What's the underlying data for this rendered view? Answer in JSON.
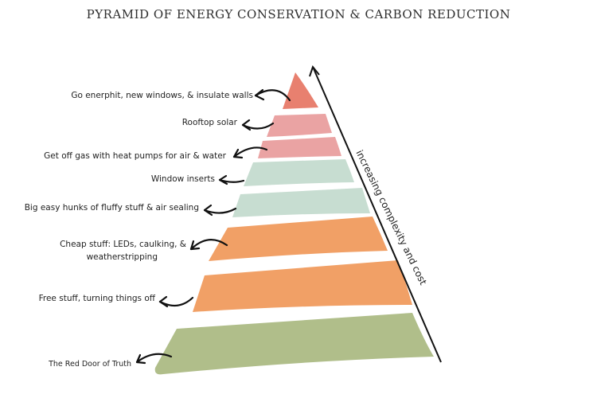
{
  "title": "PYRAMID OF ENERGY CONSERVATION & CARBON REDUCTION",
  "axis_label": "increasing complexity and cost",
  "colors": {
    "coral": "#e8806f",
    "pink": "#eaa3a3",
    "mint": "#c7ddd1",
    "orange": "#f1a066",
    "olive": "#b0be8a",
    "ink": "#111111"
  },
  "levels": [
    {
      "label": "Go enerphit, new windows, & insulate walls",
      "color": "#e8806f"
    },
    {
      "label": "Rooftop solar",
      "color": "#eaa3a3"
    },
    {
      "label": "Get off gas with heat pumps for air & water",
      "color": "#eaa3a3"
    },
    {
      "label": "Window inserts",
      "color": "#c7ddd1"
    },
    {
      "label": "Big easy hunks of fluffy stuff & air sealing",
      "color": "#c7ddd1"
    },
    {
      "label_line1": "Cheap stuff: LEDs, caulking, &",
      "label_line2": "weatherstripping",
      "color": "#f1a066"
    },
    {
      "label": "Free stuff, turning things off",
      "color": "#f1a066"
    },
    {
      "label": "The Red Door of Truth",
      "color": "#b0be8a"
    }
  ]
}
